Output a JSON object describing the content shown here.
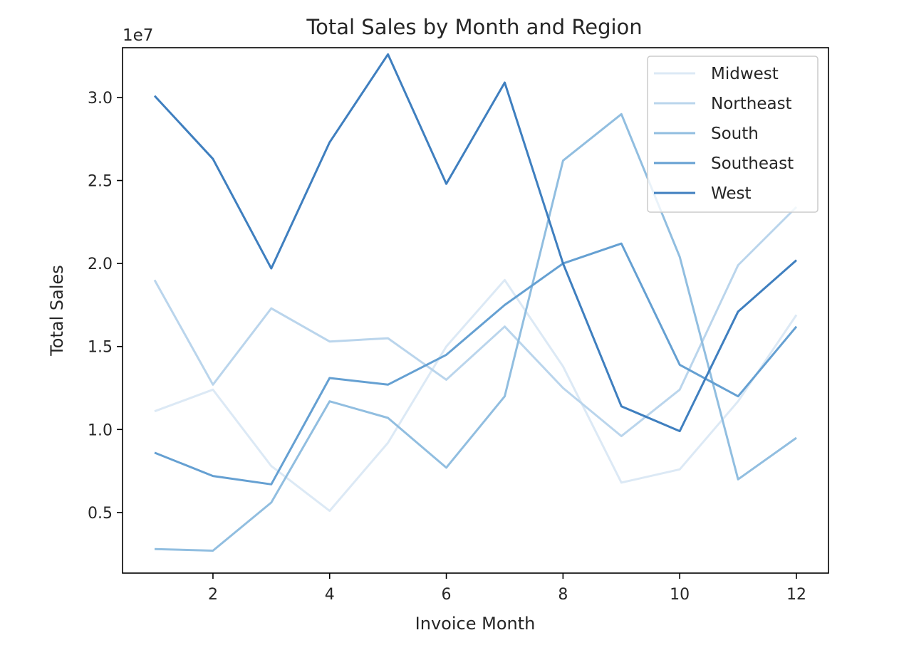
{
  "chart_data": {
    "type": "line",
    "title": "Total Sales by Month and Region",
    "xlabel": "Invoice Month",
    "ylabel": "Total Sales",
    "y_offset_label": "1e7",
    "xlim": [
      0.45,
      12.55
    ],
    "ylim": [
      1.35,
      33.0
    ],
    "y_scale_factor": 10000000,
    "x_ticks": [
      2,
      4,
      6,
      8,
      10,
      12
    ],
    "x_tick_labels": [
      "2",
      "4",
      "6",
      "8",
      "10",
      "12"
    ],
    "y_ticks": [
      5,
      10,
      15,
      20,
      25,
      30
    ],
    "y_tick_labels": [
      "0.5",
      "1.0",
      "1.5",
      "2.0",
      "2.5",
      "3.0"
    ],
    "grid": false,
    "legend_position": "top-right",
    "x": [
      1,
      2,
      3,
      4,
      5,
      6,
      7,
      8,
      9,
      10,
      11,
      12
    ],
    "series": [
      {
        "name": "Midwest",
        "color": "#dce9f5",
        "values": [
          11.1,
          12.4,
          7.8,
          5.1,
          9.2,
          15.0,
          19.0,
          13.8,
          6.8,
          7.6,
          11.7,
          16.9
        ]
      },
      {
        "name": "Northeast",
        "color": "#bad5ec",
        "values": [
          19.0,
          12.7,
          17.3,
          15.3,
          15.5,
          13.0,
          16.2,
          12.5,
          9.6,
          12.4,
          19.9,
          23.4
        ]
      },
      {
        "name": "South",
        "color": "#91bee0",
        "values": [
          2.8,
          2.7,
          5.6,
          11.7,
          10.7,
          7.7,
          12.0,
          26.2,
          29.0,
          20.4,
          7.0,
          9.5
        ]
      },
      {
        "name": "Southeast",
        "color": "#65a0d2",
        "values": [
          8.6,
          7.2,
          6.7,
          13.1,
          12.7,
          14.5,
          17.5,
          20.0,
          21.2,
          13.9,
          12.0,
          16.2
        ]
      },
      {
        "name": "West",
        "color": "#3f7fbf",
        "values": [
          30.1,
          26.3,
          19.7,
          27.3,
          32.6,
          24.8,
          30.9,
          20.0,
          11.4,
          9.9,
          17.1,
          20.2
        ]
      }
    ]
  }
}
